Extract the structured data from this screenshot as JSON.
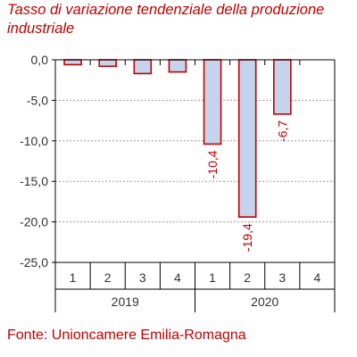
{
  "chart_data": {
    "type": "bar",
    "title": "Tasso di variazione tendenziale della produzione industriale",
    "categories": [
      "1",
      "2",
      "3",
      "4",
      "1",
      "2",
      "3",
      "4"
    ],
    "groups": [
      {
        "label": "2019",
        "categories": [
          "1",
          "2",
          "3",
          "4"
        ]
      },
      {
        "label": "2020",
        "categories": [
          "1",
          "2",
          "3",
          "4"
        ]
      }
    ],
    "values": [
      -0.6,
      -0.8,
      -1.7,
      -1.5,
      -10.4,
      -19.4,
      -6.7,
      null
    ],
    "data_labels": [
      "",
      "",
      "",
      "",
      "-10,4",
      "-19,4",
      "-6,7",
      ""
    ],
    "ylim": [
      -25,
      0
    ],
    "yticks": [
      0,
      -5,
      -10,
      -15,
      -20,
      -25
    ],
    "ytick_labels": [
      "0,0",
      "-5,0",
      "-10,0",
      "-15,0",
      "-20,0",
      "-25,0"
    ],
    "xlabel": "",
    "ylabel": "",
    "grid": true,
    "legend": "none",
    "bar_fill": "#c5d4ec",
    "bar_stroke": "#c00000",
    "text_color": "#c00000"
  },
  "source": "Fonte: Unioncamere Emilia-Romagna"
}
